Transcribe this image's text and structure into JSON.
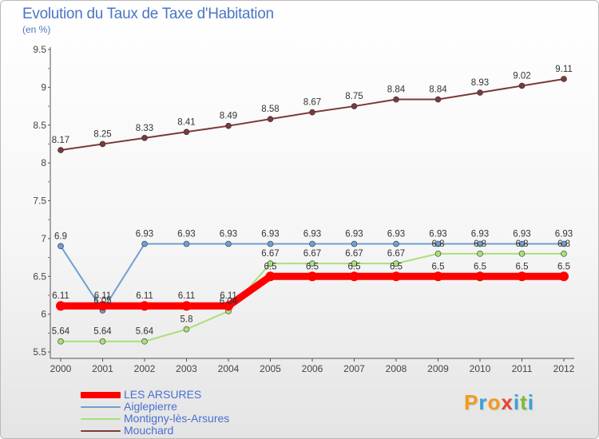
{
  "chart_data": {
    "type": "line",
    "title": "Evolution du Taux de Taxe d'Habitation",
    "subtitle": "(en %)",
    "x": [
      "2000",
      "2001",
      "2002",
      "2003",
      "2004",
      "2005",
      "2006",
      "2007",
      "2008",
      "2009",
      "2010",
      "2011",
      "2012"
    ],
    "ylim": [
      5.5,
      9.5
    ],
    "yticks": [
      "5.5",
      "6",
      "6.5",
      "7",
      "7.5",
      "8",
      "8.5",
      "9",
      "9.5"
    ],
    "series": [
      {
        "name": "LES ARSURES",
        "color": "#ff0000",
        "values": [
          6.11,
          6.11,
          6.11,
          6.11,
          6.11,
          6.5,
          6.5,
          6.5,
          6.5,
          6.5,
          6.5,
          6.5,
          6.5
        ],
        "labels": [
          "6.11",
          "6.11",
          "6.11",
          "6.11",
          "6.11",
          "6.5",
          "6.5",
          "6.5",
          "6.5",
          "6.5",
          "6.5",
          "6.5",
          "6.5"
        ]
      },
      {
        "name": "Aiglepierre",
        "color": "#6f9fd0",
        "values": [
          6.9,
          6.05,
          6.93,
          6.93,
          6.93,
          6.93,
          6.93,
          6.93,
          6.93,
          6.93,
          6.93,
          6.93,
          6.93
        ],
        "labels": [
          "6.9",
          "6.05",
          "6.93",
          "6.93",
          "6.93",
          "6.93",
          "6.93",
          "6.93",
          "6.93",
          "6.93",
          "6.93",
          "6.93",
          "6.93"
        ]
      },
      {
        "name": "Montigny-lès-Arsures",
        "color": "#a9e07a",
        "values": [
          5.64,
          5.64,
          5.64,
          5.8,
          6.04,
          6.67,
          6.67,
          6.67,
          6.67,
          6.8,
          6.8,
          6.8,
          6.8
        ],
        "labels": [
          "5.64",
          "5.64",
          "5.64",
          "5.8",
          "6.04",
          "6.67",
          "6.67",
          "6.67",
          "6.67",
          "6.8",
          "6.8",
          "6.8",
          "6.8"
        ]
      },
      {
        "name": "Mouchard",
        "color": "#7a3a3a",
        "values": [
          8.17,
          8.25,
          8.33,
          8.41,
          8.49,
          8.58,
          8.67,
          8.75,
          8.84,
          8.84,
          8.93,
          9.02,
          9.11
        ],
        "labels": [
          "8.17",
          "8.25",
          "8.33",
          "8.41",
          "8.49",
          "8.58",
          "8.67",
          "8.75",
          "8.84",
          "8.84",
          "8.93",
          "9.02",
          "9.11"
        ]
      }
    ]
  },
  "legend": {
    "items": [
      {
        "label": "LES ARSURES",
        "color": "#ff0000"
      },
      {
        "label": "Aiglepierre",
        "color": "#6f9fd0"
      },
      {
        "label": "Montigny-lès-Arsures",
        "color": "#a9e07a"
      },
      {
        "label": "Mouchard",
        "color": "#7a3a3a"
      }
    ]
  },
  "logo": {
    "letters": [
      "P",
      "r",
      "o",
      "x",
      "i",
      "t",
      "i"
    ],
    "colors": [
      "#f39a1e",
      "#3aa0d8",
      "#f39a1e",
      "#e8452f",
      "#3aa0d8",
      "#7dbb3a",
      "#3aa0d8"
    ]
  }
}
